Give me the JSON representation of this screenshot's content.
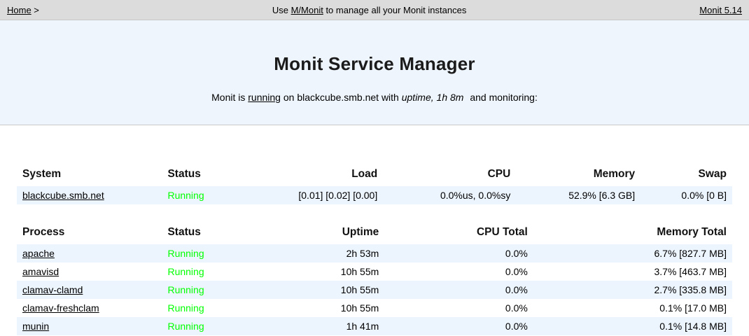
{
  "topbar": {
    "home_label": "Home",
    "home_suffix": " >",
    "center_prefix": "Use ",
    "mmonit_label": "M/Monit",
    "center_suffix": " to manage all your Monit instances",
    "version_label": "Monit 5.14"
  },
  "hero": {
    "title": "Monit Service Manager",
    "intro_prefix": "Monit is ",
    "running_link_label": "running",
    "intro_middle": " on blackcube.smb.net with ",
    "uptime_italic": "uptime, 1h 8m",
    "intro_suffix": " and monitoring:"
  },
  "system_table": {
    "headers": [
      "System",
      "Status",
      "Load",
      "CPU",
      "Memory",
      "Swap"
    ],
    "rows": [
      {
        "name": "blackcube.smb.net",
        "status": "Running",
        "load": "[0.01] [0.02] [0.00]",
        "cpu": "0.0%us, 0.0%sy",
        "memory": "52.9% [6.3 GB]",
        "swap": "0.0% [0 B]"
      }
    ]
  },
  "process_table": {
    "headers": [
      "Process",
      "Status",
      "Uptime",
      "CPU Total",
      "Memory Total"
    ],
    "rows": [
      {
        "name": "apache",
        "status": "Running",
        "uptime": "2h 53m",
        "cpu_total": "0.0%",
        "memory_total": "6.7% [827.7 MB]"
      },
      {
        "name": "amavisd",
        "status": "Running",
        "uptime": "10h 55m",
        "cpu_total": "0.0%",
        "memory_total": "3.7% [463.7 MB]"
      },
      {
        "name": "clamav-clamd",
        "status": "Running",
        "uptime": "10h 55m",
        "cpu_total": "0.0%",
        "memory_total": "2.7% [335.8 MB]"
      },
      {
        "name": "clamav-freshclam",
        "status": "Running",
        "uptime": "10h 55m",
        "cpu_total": "0.0%",
        "memory_total": "0.1% [17.0 MB]"
      },
      {
        "name": "munin",
        "status": "Running",
        "uptime": "1h 41m",
        "cpu_total": "0.0%",
        "memory_total": "0.1% [14.8 MB]"
      }
    ]
  },
  "colors": {
    "status_running": "#00ff00",
    "topbar_bg": "#dcdcdc",
    "hero_bg": "#eef5fd",
    "stripe_bg": "#ecf4fd"
  }
}
